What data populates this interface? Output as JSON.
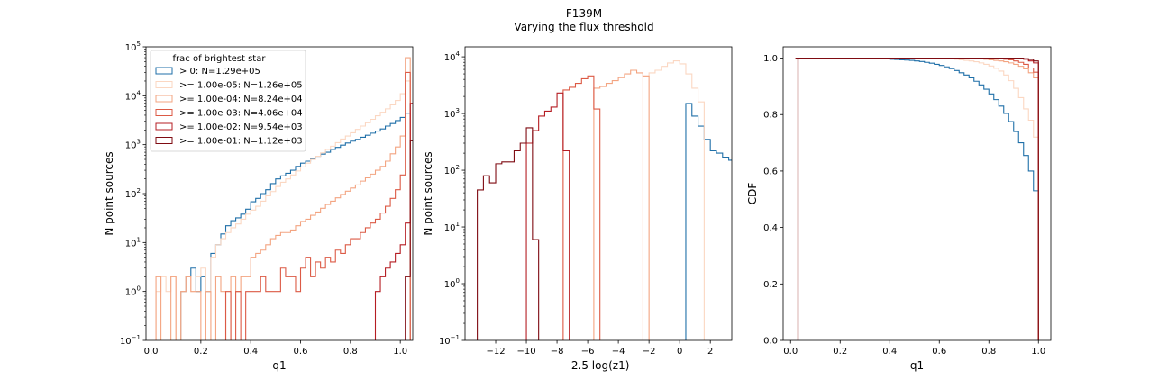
{
  "figure": {
    "title": "F139M",
    "subtitle": "Varying the flux threshold"
  },
  "colors": {
    "all": "#1f6fa8",
    "t1e-05": "#fbd7c2",
    "t1e-04": "#f3a481",
    "t1e-03": "#dc5a45",
    "t1e-02": "#b51d23",
    "t1e-01": "#7f0b12"
  },
  "chart_data": [
    {
      "type": "step-histogram",
      "xlabel": "q1",
      "ylabel": "N point sources",
      "yscale": "log",
      "xlim": [
        -0.02,
        1.05
      ],
      "ylim": [
        0.1,
        100000
      ],
      "xticks": [
        0.0,
        0.2,
        0.4,
        0.6,
        0.8,
        1.0
      ],
      "xticklabels": [
        "0.0",
        "0.2",
        "0.4",
        "0.6",
        "0.8",
        "1.0"
      ],
      "yticks": [
        0.1,
        1,
        10,
        100,
        1000,
        10000,
        100000
      ],
      "yticklabels": [
        [
          "10",
          "−1"
        ],
        [
          "10",
          "0"
        ],
        [
          "10",
          "1"
        ],
        [
          "10",
          "2"
        ],
        [
          "10",
          "3"
        ],
        [
          "10",
          "4"
        ],
        [
          "10",
          "5"
        ]
      ],
      "bins": {
        "start": 0.0,
        "width": 0.02
      },
      "legend": {
        "title": "frac of brightest star",
        "position": "upper left",
        "entries": [
          "> 0: N=1.29e+05",
          ">= 1.00e-05: N=1.26e+05",
          ">= 1.00e-04: N=8.24e+04",
          ">= 1.00e-03: N=4.06e+04",
          ">= 1.00e-02: N=9.54e+03",
          ">= 1.00e-01: N=1.12e+03"
        ]
      },
      "series": [
        {
          "color_key": "all",
          "values": [
            0,
            0,
            0,
            0,
            0,
            0,
            1,
            2,
            3,
            1,
            2,
            1,
            6,
            9,
            15,
            22,
            28,
            32,
            38,
            48,
            68,
            80,
            100,
            120,
            160,
            200,
            230,
            260,
            300,
            360,
            420,
            460,
            520,
            580,
            640,
            700,
            800,
            880,
            980,
            1080,
            1180,
            1280,
            1420,
            1560,
            1720,
            1900,
            2100,
            2400,
            2700,
            3100,
            3600,
            4400
          ]
        },
        {
          "color_key": "t1e-05",
          "values": [
            0,
            1,
            2,
            1,
            2,
            0,
            1,
            2,
            1,
            2,
            3,
            1,
            5,
            9,
            12,
            16,
            20,
            24,
            30,
            38,
            46,
            55,
            70,
            90,
            110,
            140,
            170,
            200,
            240,
            290,
            350,
            420,
            500,
            580,
            680,
            800,
            930,
            1100,
            1300,
            1500,
            1750,
            2050,
            2400,
            2800,
            3300,
            3900,
            4600,
            5400,
            6500,
            8000,
            11000,
            20000
          ]
        },
        {
          "color_key": "t1e-04",
          "values": [
            0,
            2,
            0,
            0,
            2,
            0,
            1,
            2,
            1,
            1,
            0,
            1,
            0,
            2,
            1,
            0,
            2,
            1,
            2,
            2,
            5,
            6,
            7,
            9,
            12,
            14,
            16,
            16,
            18,
            22,
            27,
            30,
            36,
            42,
            50,
            60,
            70,
            82,
            96,
            112,
            130,
            150,
            180,
            210,
            250,
            300,
            360,
            460,
            650,
            900,
            1500,
            60000
          ]
        },
        {
          "color_key": "t1e-03",
          "values": [
            0,
            0,
            0,
            0,
            0,
            0,
            0,
            0,
            0,
            0,
            0,
            0,
            0,
            0,
            0,
            1,
            0,
            1,
            0,
            1,
            1,
            1,
            2,
            1,
            1,
            1,
            3,
            2,
            2,
            1,
            3,
            5,
            2,
            4,
            3,
            5,
            4,
            7,
            6,
            9,
            12,
            12,
            16,
            20,
            25,
            30,
            40,
            55,
            80,
            120,
            240,
            30000
          ]
        },
        {
          "color_key": "t1e-02",
          "values": [
            0,
            0,
            0,
            0,
            0,
            0,
            0,
            0,
            0,
            0,
            0,
            0,
            0,
            0,
            0,
            0,
            0,
            0,
            0,
            0,
            0,
            0,
            0,
            0,
            0,
            0,
            0,
            0,
            0,
            0,
            0,
            0,
            0,
            0,
            0,
            0,
            0,
            0,
            0,
            0,
            0,
            0,
            0,
            0,
            0,
            1,
            2,
            3,
            4,
            6,
            9,
            25,
            7000
          ]
        },
        {
          "color_key": "t1e-01",
          "values": [
            0,
            0,
            0,
            0,
            0,
            0,
            0,
            0,
            0,
            0,
            0,
            0,
            0,
            0,
            0,
            0,
            0,
            0,
            0,
            0,
            0,
            0,
            0,
            0,
            0,
            0,
            0,
            0,
            0,
            0,
            0,
            0,
            0,
            0,
            0,
            0,
            0,
            0,
            0,
            0,
            0,
            0,
            0,
            0,
            0,
            0,
            0,
            0,
            0,
            0,
            0,
            2,
            1200
          ]
        }
      ]
    },
    {
      "type": "step-histogram",
      "xlabel": "-2.5 log(z1)",
      "ylabel": "N point sources",
      "yscale": "log",
      "xlim": [
        -14.0,
        3.4
      ],
      "ylim": [
        0.1,
        15000
      ],
      "xticks": [
        -12,
        -10,
        -8,
        -6,
        -4,
        -2,
        0,
        2
      ],
      "xticklabels": [
        "−12",
        "−10",
        "−8",
        "−6",
        "−4",
        "−2",
        "0",
        "2"
      ],
      "yticks": [
        0.1,
        1,
        10,
        100,
        1000,
        10000
      ],
      "yticklabels": [
        [
          "10",
          "−1"
        ],
        [
          "10",
          "0"
        ],
        [
          "10",
          "1"
        ],
        [
          "10",
          "2"
        ],
        [
          "10",
          "3"
        ],
        [
          "10",
          "4"
        ]
      ],
      "bins": {
        "start": -13.2,
        "width": 0.4
      },
      "series": [
        {
          "color_key": "all",
          "values": [
            0,
            0,
            0,
            0,
            0,
            0,
            0,
            0,
            0,
            0,
            0,
            0,
            0,
            0,
            0,
            0,
            0,
            0,
            0,
            0,
            0,
            0,
            0,
            0,
            0,
            0,
            0,
            0,
            0,
            0,
            0,
            0,
            0,
            0,
            1500,
            900,
            600,
            350,
            220,
            200,
            170,
            150,
            160,
            130,
            0,
            150
          ]
        },
        {
          "color_key": "t1e-05",
          "values": [
            0,
            0,
            0,
            0,
            0,
            0,
            0,
            0,
            0,
            0,
            0,
            0,
            0,
            0,
            0,
            0,
            0,
            0,
            0,
            0,
            0,
            0,
            0,
            0,
            0,
            0,
            0,
            4500,
            5200,
            5800,
            6800,
            7800,
            8500,
            7500,
            5000,
            2800,
            1600
          ]
        },
        {
          "color_key": "t1e-04",
          "values": [
            0,
            0,
            0,
            0,
            0,
            0,
            0,
            0,
            0,
            0,
            0,
            0,
            0,
            0,
            0,
            0,
            0,
            0,
            0,
            2800,
            3000,
            3400,
            3800,
            4300,
            5000,
            5800,
            5200,
            4600
          ]
        },
        {
          "color_key": "t1e-03",
          "values": [
            0,
            0,
            0,
            0,
            0,
            0,
            0,
            0,
            0,
            0,
            0,
            0,
            0,
            0,
            2600,
            2900,
            3400,
            4100,
            4600,
            1200
          ]
        },
        {
          "color_key": "t1e-02",
          "values": [
            0,
            0,
            0,
            0,
            0,
            0,
            0,
            0,
            300,
            500,
            900,
            1100,
            1300,
            2300,
            220
          ]
        },
        {
          "color_key": "t1e-01",
          "values": [
            45,
            80,
            60,
            130,
            140,
            140,
            220,
            300,
            560,
            6
          ]
        }
      ]
    },
    {
      "type": "step-cdf",
      "xlabel": "q1",
      "ylabel": "CDF",
      "xlim": [
        -0.03,
        1.05
      ],
      "ylim": [
        0.0,
        1.04
      ],
      "xticks": [
        0.0,
        0.2,
        0.4,
        0.6,
        0.8,
        1.0
      ],
      "xticklabels": [
        "0.0",
        "0.2",
        "0.4",
        "0.6",
        "0.8",
        "1.0"
      ],
      "yticks": [
        0.0,
        0.2,
        0.4,
        0.6,
        0.8,
        1.0
      ],
      "yticklabels": [
        "0.0",
        "0.2",
        "0.4",
        "0.6",
        "0.8",
        "1.0"
      ],
      "bins": {
        "start": 0.0,
        "width": 0.02
      },
      "series": [
        {
          "color_key": "all",
          "values": [
            1,
            1,
            1,
            1,
            1,
            1,
            1,
            1,
            1,
            1,
            1,
            1,
            1,
            1,
            1,
            1,
            0.998,
            0.998,
            0.997,
            0.996,
            0.995,
            0.994,
            0.993,
            0.992,
            0.99,
            0.988,
            0.985,
            0.982,
            0.978,
            0.974,
            0.969,
            0.963,
            0.956,
            0.948,
            0.94,
            0.93,
            0.918,
            0.905,
            0.89,
            0.873,
            0.853,
            0.83,
            0.804,
            0.775,
            0.74,
            0.7,
            0.655,
            0.6,
            0.53,
            0.52
          ]
        },
        {
          "color_key": "t1e-05",
          "values": [
            1,
            1,
            1,
            1,
            1,
            1,
            1,
            1,
            1,
            1,
            1,
            1,
            1,
            1,
            1,
            1,
            1,
            1,
            1,
            1,
            1,
            1,
            1,
            1,
            1,
            1,
            1,
            1,
            1,
            0.999,
            0.998,
            0.997,
            0.996,
            0.994,
            0.992,
            0.99,
            0.987,
            0.983,
            0.978,
            0.972,
            0.964,
            0.954,
            0.94,
            0.92,
            0.893,
            0.86,
            0.82,
            0.78,
            0.72,
            0.6
          ]
        },
        {
          "color_key": "t1e-04",
          "values": [
            1,
            1,
            1,
            1,
            1,
            1,
            1,
            1,
            1,
            1,
            1,
            1,
            1,
            1,
            1,
            1,
            1,
            1,
            1,
            1,
            1,
            1,
            1,
            1,
            1,
            1,
            1,
            1,
            1,
            1,
            1,
            1,
            1,
            1,
            1,
            0.999,
            0.998,
            0.997,
            0.996,
            0.994,
            0.992,
            0.99,
            0.987,
            0.983,
            0.978,
            0.971,
            0.962,
            0.948,
            0.93,
            0.8
          ]
        },
        {
          "color_key": "t1e-03",
          "values": [
            1,
            1,
            1,
            1,
            1,
            1,
            1,
            1,
            1,
            1,
            1,
            1,
            1,
            1,
            1,
            1,
            1,
            1,
            1,
            1,
            1,
            1,
            1,
            1,
            1,
            1,
            1,
            1,
            1,
            1,
            1,
            1,
            1,
            1,
            1,
            1,
            1,
            1,
            1,
            0.999,
            0.998,
            0.997,
            0.996,
            0.994,
            0.99,
            0.985,
            0.978,
            0.965,
            0.95,
            0.88
          ]
        },
        {
          "color_key": "t1e-02",
          "values": [
            1,
            1,
            1,
            1,
            1,
            1,
            1,
            1,
            1,
            1,
            1,
            1,
            1,
            1,
            1,
            1,
            1,
            1,
            1,
            1,
            1,
            1,
            1,
            1,
            1,
            1,
            1,
            1,
            1,
            1,
            1,
            1,
            1,
            1,
            1,
            1,
            1,
            1,
            1,
            1,
            1,
            1,
            1,
            1,
            1,
            0.998,
            0.996,
            0.99,
            0.983,
            0.97
          ]
        },
        {
          "color_key": "t1e-01",
          "values": [
            1,
            1,
            1,
            1,
            1,
            1,
            1,
            1,
            1,
            1,
            1,
            1,
            1,
            1,
            1,
            1,
            1,
            1,
            1,
            1,
            1,
            1,
            1,
            1,
            1,
            1,
            1,
            1,
            1,
            1,
            1,
            1,
            1,
            1,
            1,
            1,
            1,
            1,
            1,
            1,
            1,
            1,
            1,
            1,
            1,
            1,
            0.998,
            0.995,
            0.99,
            0.98
          ]
        }
      ]
    }
  ]
}
